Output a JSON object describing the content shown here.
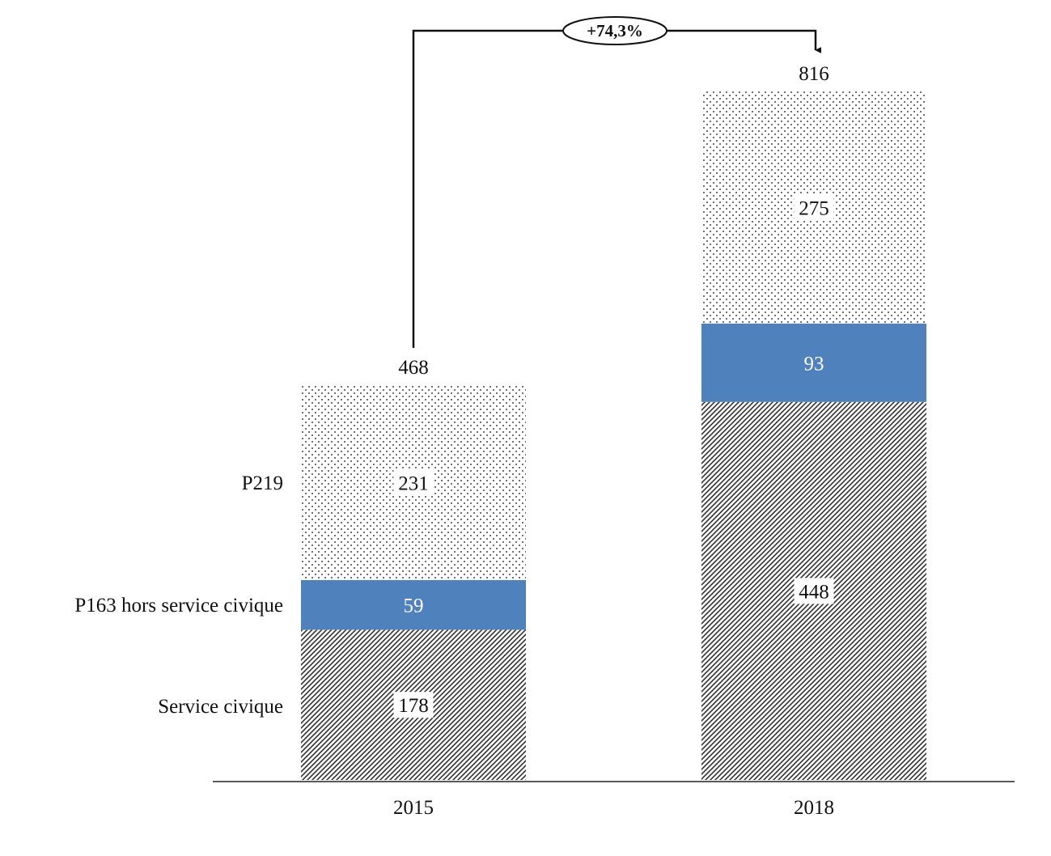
{
  "chart_data": {
    "type": "bar",
    "stacked": true,
    "categories": [
      "2015",
      "2018"
    ],
    "series": [
      {
        "name": "Service civique",
        "values": [
          178,
          448
        ],
        "pattern": "diagonal-hatch"
      },
      {
        "name": "P163 hors service civique",
        "values": [
          59,
          93
        ],
        "color": "#4f81bd"
      },
      {
        "name": "P219",
        "values": [
          231,
          275
        ],
        "pattern": "dots"
      }
    ],
    "totals": [
      "468",
      "816"
    ],
    "annotation": {
      "label": "+74,3%",
      "from": "2015",
      "to": "2018"
    },
    "legend_placement": "left, inline beside first bar",
    "ylim": [
      0,
      816
    ],
    "grid": false
  }
}
